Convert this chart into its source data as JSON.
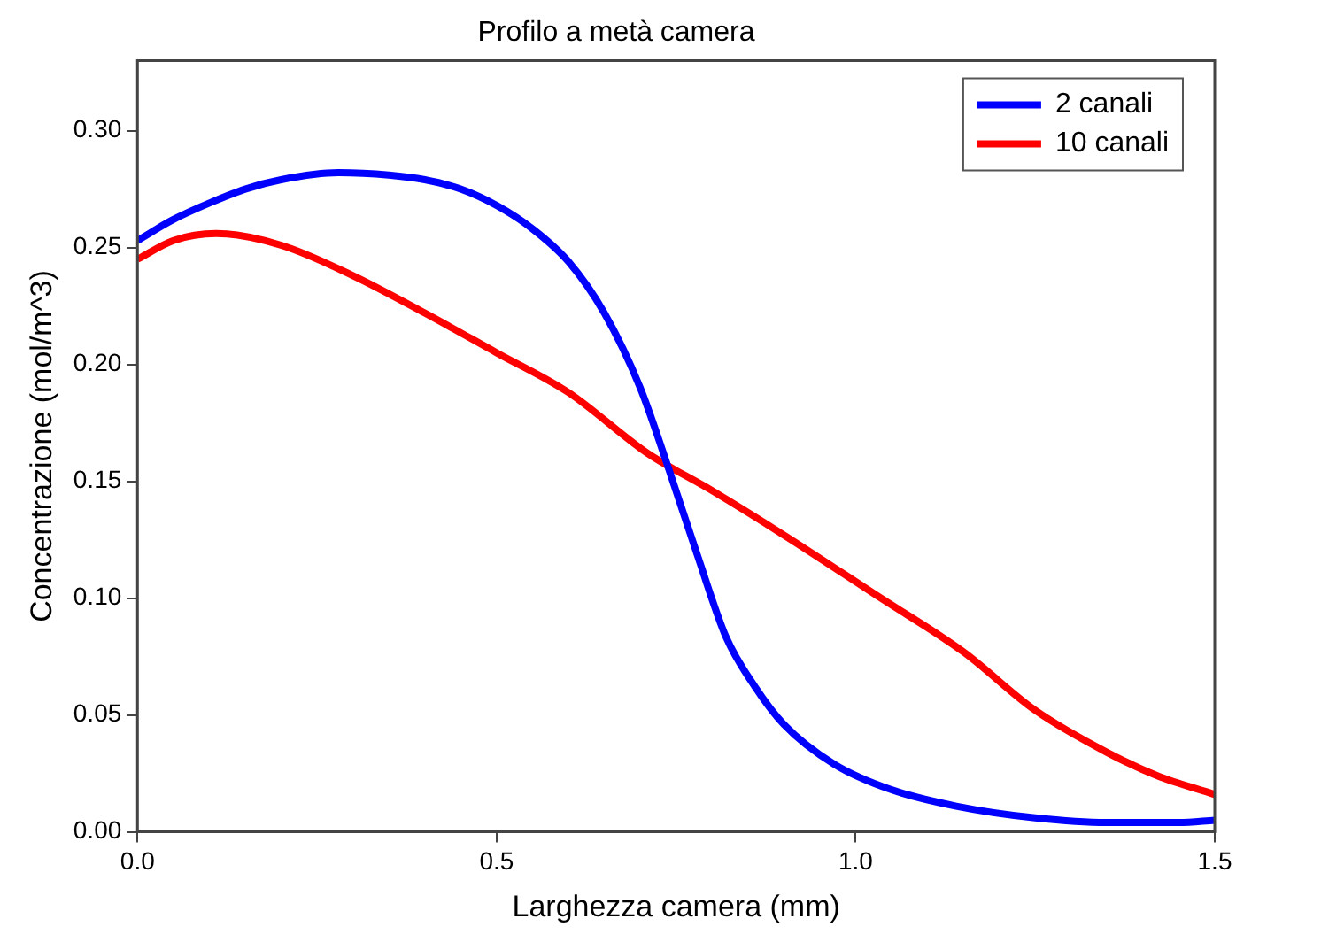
{
  "chart_data": {
    "type": "line",
    "title": "Profilo a metà camera",
    "xlabel": "Larghezza camera (mm)",
    "ylabel": "Concentrazione (mol/m^3)",
    "xlim": [
      0,
      1.5
    ],
    "xticks": [
      {
        "value": 0,
        "label": "0.0"
      },
      0.5,
      {
        "value": 1,
        "label": "1.0"
      },
      1.5
    ],
    "ylim": [
      0,
      0.33
    ],
    "yticks": [
      {
        "value": 0,
        "label": "0.00"
      },
      0.05,
      {
        "value": 0.1,
        "label": "0.10"
      },
      0.15,
      {
        "value": 0.2,
        "label": "0.20"
      },
      0.25,
      {
        "value": 0.3,
        "label": "0.30"
      }
    ],
    "legend": "top right",
    "grid": false,
    "series": [
      {
        "name": "2 canali",
        "color": "#0000ff",
        "x": [
          0,
          0.05,
          0.1,
          0.15,
          0.2,
          0.28,
          0.35,
          0.4,
          0.45,
          0.5,
          0.55,
          0.6,
          0.65,
          0.7,
          0.74,
          0.78,
          0.82,
          0.86,
          0.9,
          0.97,
          1.05,
          1.14,
          1.25,
          1.35,
          1.45,
          1.5
        ],
        "values": [
          0.253,
          0.262,
          0.269,
          0.275,
          0.279,
          0.282,
          0.281,
          0.279,
          0.275,
          0.268,
          0.258,
          0.244,
          0.222,
          0.19,
          0.155,
          0.118,
          0.083,
          0.062,
          0.046,
          0.029,
          0.018,
          0.011,
          0.006,
          0.004,
          0.004,
          0.005
        ]
      },
      {
        "name": "10 canali",
        "color": "#ff0000",
        "x": [
          0,
          0.05,
          0.11,
          0.2,
          0.3,
          0.4,
          0.5,
          0.6,
          0.71,
          0.8,
          0.9,
          1.03,
          1.15,
          1.25,
          1.35,
          1.42,
          1.5
        ],
        "values": [
          0.245,
          0.253,
          0.256,
          0.251,
          0.238,
          0.222,
          0.205,
          0.188,
          0.162,
          0.146,
          0.127,
          0.101,
          0.077,
          0.052,
          0.034,
          0.024,
          0.016
        ]
      }
    ]
  }
}
